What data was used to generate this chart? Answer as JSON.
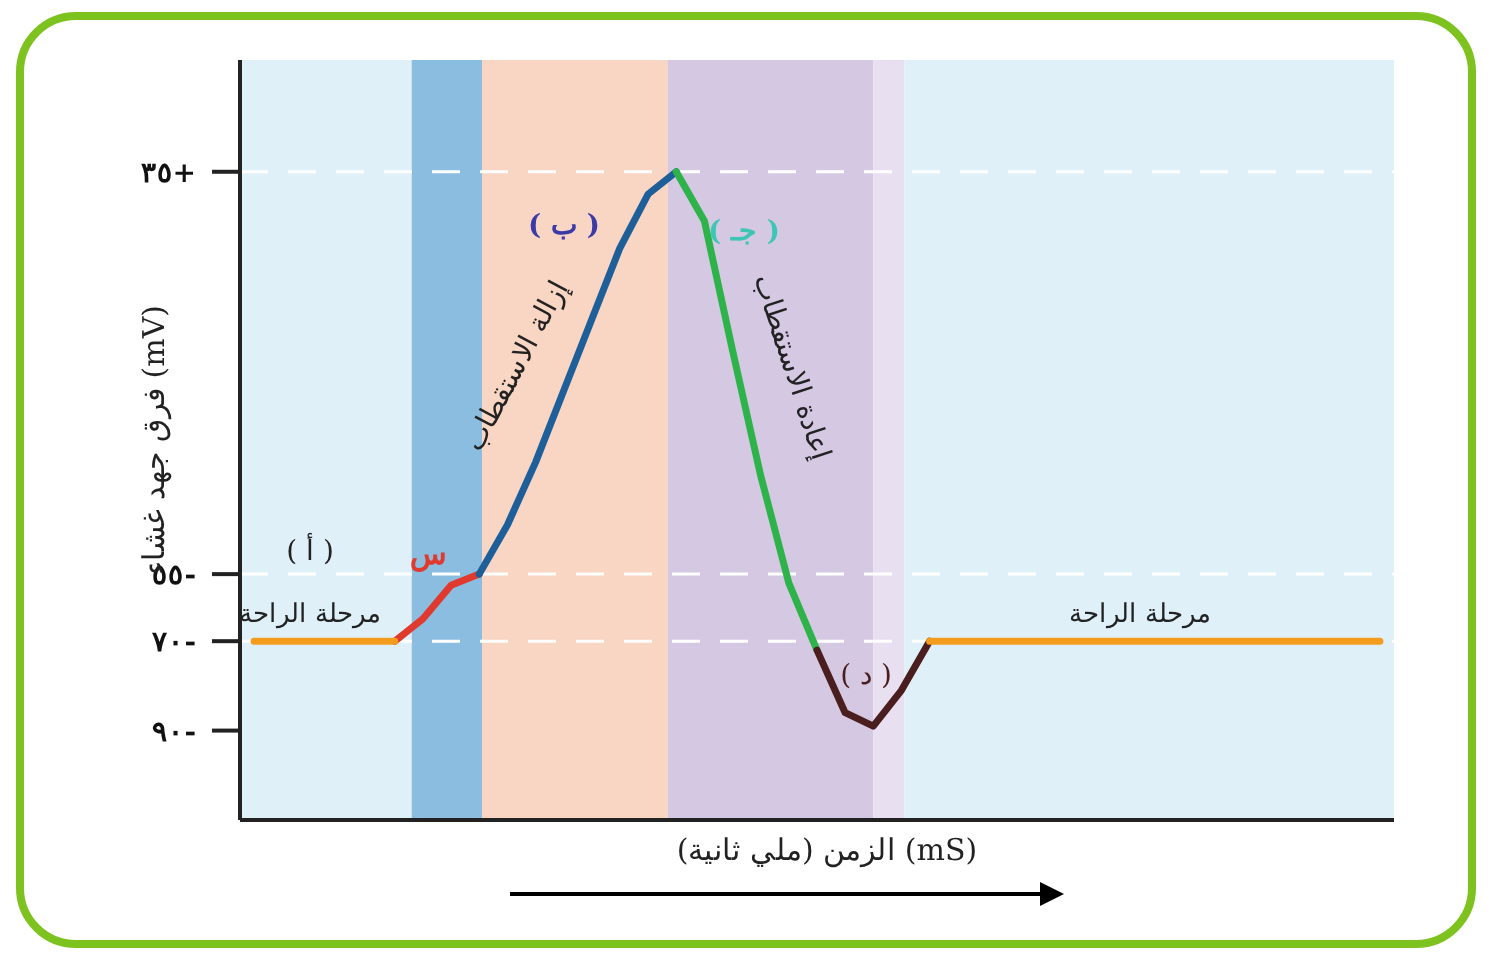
{
  "chart_data": {
    "type": "line",
    "xlabel": "الزمن (ملي ثانية) (mS)",
    "ylabel": "فرق جهد غشاء (mV)",
    "categories": [
      null,
      null,
      null,
      null,
      null,
      null,
      null,
      null,
      null,
      null,
      null,
      null,
      null,
      null,
      null,
      null,
      null,
      null,
      null,
      null,
      null,
      null,
      null,
      null,
      null,
      null,
      null,
      null,
      null,
      null,
      null,
      null,
      null,
      null,
      null,
      null,
      null,
      null,
      null,
      null,
      null
    ],
    "ylim": [
      -110,
      60
    ],
    "yticks": [
      {
        "value": 35,
        "label": "٣٥+"
      },
      {
        "value": -55,
        "label": "٥٥-"
      },
      {
        "value": -70,
        "label": "٧٠-"
      },
      {
        "value": -90,
        "label": "٩٠-"
      }
    ],
    "tick_labels": "y",
    "ref_lines": [
      {
        "axis": "y",
        "value": 35,
        "color": "#ffffff",
        "line_style": "dashed"
      },
      {
        "axis": "y",
        "value": -55,
        "color": "#ffffff",
        "line_style": "dashed"
      },
      {
        "axis": "y",
        "value": -70,
        "color": "#ffffff",
        "line_style": "dashed"
      }
    ],
    "series": [
      {
        "color": "#e03a2f",
        "values": [
          null,
          null,
          null,
          null,
          null,
          -70,
          -65,
          -57.5,
          -55,
          null,
          null,
          null,
          null,
          null,
          null,
          null,
          null,
          null,
          null,
          null,
          null,
          null,
          null,
          null,
          null,
          null,
          null,
          null,
          null,
          null,
          null,
          null,
          null,
          null,
          null,
          null,
          null,
          null,
          null,
          null,
          null
        ]
      },
      {
        "color": "#1f5f99",
        "values": [
          null,
          null,
          null,
          null,
          null,
          null,
          null,
          null,
          -55,
          -44,
          -30,
          -14,
          2,
          18,
          30,
          35,
          null,
          null,
          null,
          null,
          null,
          null,
          null,
          null,
          null,
          null,
          null,
          null,
          null,
          null,
          null,
          null,
          null,
          null,
          null,
          null,
          null,
          null,
          null,
          null,
          null
        ]
      },
      {
        "color": "#2db34a",
        "values": [
          null,
          null,
          null,
          null,
          null,
          null,
          null,
          null,
          null,
          null,
          null,
          null,
          null,
          null,
          null,
          35,
          24,
          -5,
          -33,
          -57,
          -72,
          null,
          null,
          null,
          null,
          null,
          null,
          null,
          null,
          null,
          null,
          null,
          null,
          null,
          null,
          null,
          null,
          null,
          null,
          null,
          null
        ]
      },
      {
        "color": "#4a1e1e",
        "values": [
          null,
          null,
          null,
          null,
          null,
          null,
          null,
          null,
          null,
          null,
          null,
          null,
          null,
          null,
          null,
          null,
          null,
          null,
          null,
          null,
          -72,
          -86,
          -89,
          -81,
          -70,
          null,
          null,
          null,
          null,
          null,
          null,
          null,
          null,
          null,
          null,
          null,
          null,
          null,
          null,
          null,
          null
        ]
      },
      {
        "color": "#f39c1e",
        "values": [
          -70,
          -70,
          -70,
          -70,
          -70,
          -70,
          null,
          null,
          null,
          null,
          null,
          null,
          null,
          null,
          null,
          null,
          null,
          null,
          null,
          null,
          null,
          null,
          null,
          null,
          -70,
          -70,
          -70,
          -70,
          -70,
          -70,
          -70,
          -70,
          -70,
          -70,
          -70,
          -70,
          -70,
          -70,
          -70,
          -70,
          -70
        ]
      }
    ],
    "annotations": [
      "( أ )",
      "مرحلة الراحة",
      "س",
      "( ب )",
      "إزالة الاستقطاب",
      "( جـ )",
      "إعادة الاستقطاب",
      "( د )",
      "مرحلة الراحة"
    ]
  }
}
